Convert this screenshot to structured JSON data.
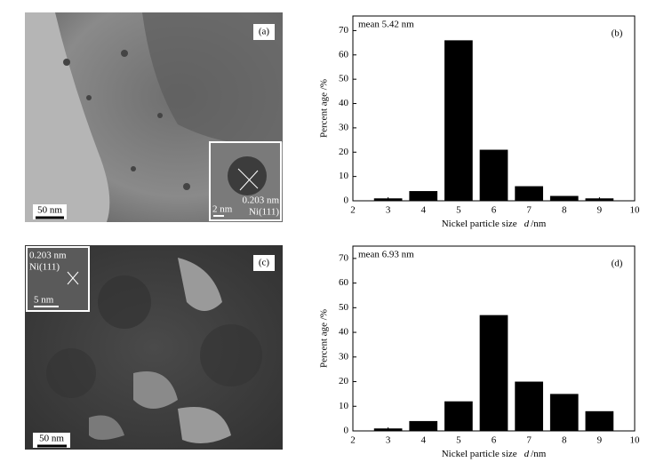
{
  "chart_data": [
    {
      "type": "bar",
      "annotation": "mean  5.42 nm",
      "panel": "(b)",
      "xlabel": "Nickel particle size",
      "xlabel_symbol": "d",
      "xlabel_unit": "/nm",
      "ylabel": "Percent age /%",
      "x": [
        3,
        4,
        5,
        6,
        7,
        8,
        9
      ],
      "values": [
        1,
        4,
        66,
        21,
        6,
        2,
        1
      ],
      "color": "#000000",
      "xlim": [
        2,
        10
      ],
      "xticks": [
        2,
        3,
        4,
        5,
        6,
        7,
        8,
        9,
        10
      ],
      "ylim": [
        0,
        76
      ],
      "yticks": [
        0,
        10,
        20,
        30,
        40,
        50,
        60,
        70
      ]
    },
    {
      "type": "bar",
      "annotation": "mean  6.93 nm",
      "panel": "(d)",
      "xlabel": "Nickel particle size",
      "xlabel_symbol": "d",
      "xlabel_unit": "/nm",
      "ylabel": "Percent age /%",
      "x": [
        3,
        4,
        5,
        6,
        7,
        8,
        9
      ],
      "values": [
        1,
        4,
        12,
        47,
        20,
        15,
        8
      ],
      "color": "#000000",
      "xlim": [
        2,
        10
      ],
      "xticks": [
        2,
        3,
        4,
        5,
        6,
        7,
        8,
        9,
        10
      ],
      "ylim": [
        0,
        75
      ],
      "yticks": [
        0,
        10,
        20,
        30,
        40,
        50,
        60,
        70
      ]
    }
  ],
  "images": [
    {
      "panel": "(a)",
      "scale_bar": "50 nm",
      "inset_spacing": "0.203 nm",
      "inset_plane": "Ni(111)",
      "inset_scale": "2 nm"
    },
    {
      "panel": "(c)",
      "scale_bar": "50 nm",
      "inset_spacing": "0.203 nm",
      "inset_plane": "Ni(111)",
      "inset_scale": "5 nm"
    }
  ]
}
